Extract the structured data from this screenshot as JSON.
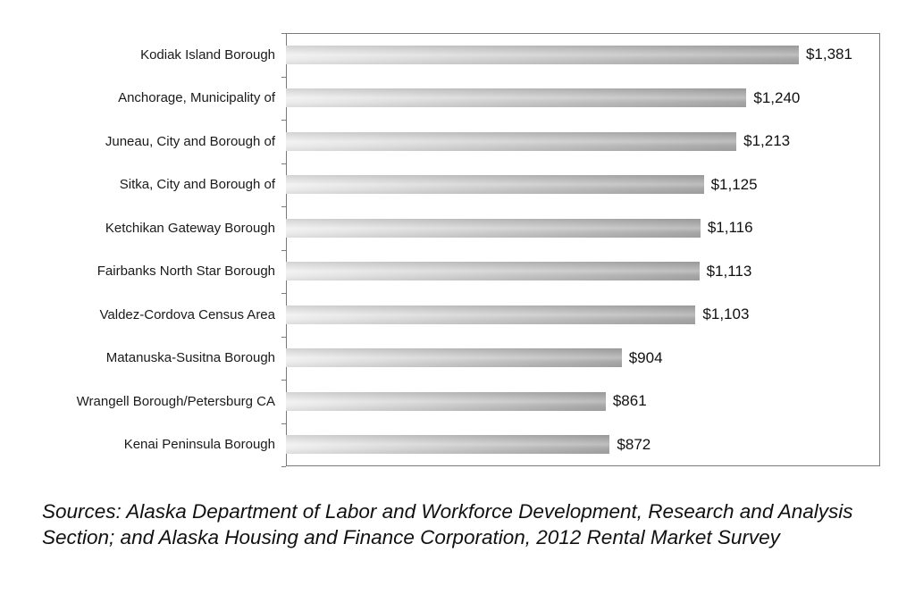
{
  "chart_data": {
    "type": "bar",
    "orientation": "horizontal",
    "title": "",
    "xlabel": "",
    "ylabel": "",
    "xlim": [
      0,
      1600
    ],
    "grid": false,
    "legend": false,
    "categories": [
      "Kodiak Island Borough",
      "Anchorage, Municipality of",
      "Juneau, City and Borough of",
      "Sitka, City and Borough of",
      "Ketchikan Gateway Borough",
      "Fairbanks North Star Borough",
      "Valdez-Cordova Census Area",
      "Matanuska-Susitna Borough",
      "Wrangell Borough/Petersburg CA",
      "Kenai Peninsula Borough"
    ],
    "values": [
      1381,
      1240,
      1213,
      1125,
      1116,
      1113,
      1103,
      904,
      861,
      872
    ],
    "value_labels": [
      "$1,381",
      "$1,240",
      "$1,213",
      "$1,125",
      "$1,116",
      "$1,113",
      "$1,103",
      "$904",
      "$861",
      "$872"
    ],
    "colors": {
      "bar_gradient_start": "#ededed",
      "bar_gradient_end": "#a2a2a2",
      "plot_border": "#7a7a7a",
      "label_text": "#1a1a1a"
    }
  },
  "footer": {
    "source_text": "Sources: Alaska Department of Labor and Workforce Development, Research and Analysis Section; and Alaska Housing and Finance Corporation, 2012 Rental Market Survey"
  }
}
